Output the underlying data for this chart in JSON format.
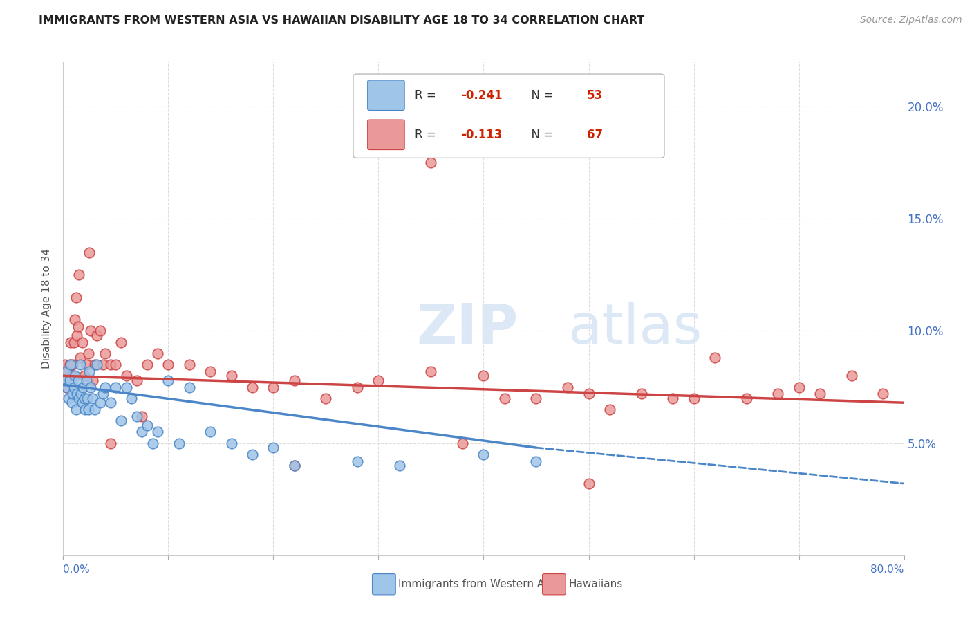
{
  "title": "IMMIGRANTS FROM WESTERN ASIA VS HAWAIIAN DISABILITY AGE 18 TO 34 CORRELATION CHART",
  "source": "Source: ZipAtlas.com",
  "ylabel": "Disability Age 18 to 34",
  "legend_label1": "Immigrants from Western Asia",
  "legend_label2": "Hawaiians",
  "R1": -0.241,
  "N1": 53,
  "R2": -0.113,
  "N2": 67,
  "color_blue": "#9fc5e8",
  "color_pink": "#ea9999",
  "color_blue_dark": "#4a86c8",
  "color_pink_dark": "#cc4444",
  "color_axis": "#4472c4",
  "watermark_color": "#dce8f5",
  "xlim": [
    0,
    80
  ],
  "ylim": [
    0,
    22
  ],
  "xticks": [
    0,
    10,
    20,
    30,
    40,
    50,
    60,
    70,
    80
  ],
  "yticks_right": [
    5.0,
    10.0,
    15.0,
    20.0
  ],
  "blue_trend_start_x": 0,
  "blue_trend_start_y": 7.6,
  "blue_trend_solid_end_x": 45,
  "blue_trend_solid_end_y": 4.8,
  "blue_trend_dash_end_x": 80,
  "blue_trend_dash_end_y": 3.2,
  "pink_trend_start_x": 0,
  "pink_trend_start_y": 8.0,
  "pink_trend_end_x": 80,
  "pink_trend_end_y": 6.8,
  "blue_scatter_x": [
    0.2,
    0.3,
    0.4,
    0.5,
    0.6,
    0.7,
    0.8,
    0.9,
    1.0,
    1.1,
    1.2,
    1.3,
    1.4,
    1.5,
    1.6,
    1.7,
    1.8,
    1.9,
    2.0,
    2.1,
    2.2,
    2.3,
    2.4,
    2.5,
    2.6,
    2.8,
    3.0,
    3.2,
    3.5,
    3.8,
    4.0,
    4.5,
    5.0,
    5.5,
    6.0,
    6.5,
    7.0,
    7.5,
    8.0,
    8.5,
    9.0,
    10.0,
    11.0,
    12.0,
    14.0,
    16.0,
    18.0,
    20.0,
    22.0,
    28.0,
    32.0,
    40.0,
    45.0
  ],
  "blue_scatter_y": [
    7.8,
    8.2,
    7.5,
    7.0,
    7.8,
    8.5,
    6.8,
    7.2,
    7.5,
    8.0,
    6.5,
    7.2,
    7.8,
    7.0,
    8.5,
    7.2,
    6.8,
    7.5,
    7.0,
    6.5,
    7.8,
    7.0,
    6.5,
    8.2,
    7.5,
    7.0,
    6.5,
    8.5,
    6.8,
    7.2,
    7.5,
    6.8,
    7.5,
    6.0,
    7.5,
    7.0,
    6.2,
    5.5,
    5.8,
    5.0,
    5.5,
    7.8,
    5.0,
    7.5,
    5.5,
    5.0,
    4.5,
    4.8,
    4.0,
    4.2,
    4.0,
    4.5,
    4.2
  ],
  "pink_scatter_x": [
    0.2,
    0.3,
    0.4,
    0.5,
    0.6,
    0.7,
    0.8,
    0.9,
    1.0,
    1.1,
    1.2,
    1.3,
    1.4,
    1.5,
    1.6,
    1.8,
    2.0,
    2.2,
    2.4,
    2.6,
    2.8,
    3.0,
    3.2,
    3.5,
    3.8,
    4.0,
    4.5,
    5.0,
    5.5,
    6.0,
    7.0,
    8.0,
    9.0,
    10.0,
    12.0,
    14.0,
    16.0,
    18.0,
    20.0,
    22.0,
    25.0,
    28.0,
    30.0,
    35.0,
    38.0,
    40.0,
    42.0,
    45.0,
    48.0,
    50.0,
    52.0,
    55.0,
    58.0,
    60.0,
    62.0,
    65.0,
    68.0,
    70.0,
    72.0,
    75.0,
    78.0,
    35.0,
    50.0,
    22.0,
    4.5,
    7.5,
    2.5
  ],
  "pink_scatter_y": [
    8.5,
    7.5,
    8.0,
    8.2,
    8.5,
    9.5,
    8.0,
    8.5,
    9.5,
    10.5,
    11.5,
    9.8,
    10.2,
    12.5,
    8.8,
    9.5,
    8.0,
    8.5,
    9.0,
    10.0,
    7.8,
    8.5,
    9.8,
    10.0,
    8.5,
    9.0,
    8.5,
    8.5,
    9.5,
    8.0,
    7.8,
    8.5,
    9.0,
    8.5,
    8.5,
    8.2,
    8.0,
    7.5,
    7.5,
    7.8,
    7.0,
    7.5,
    7.8,
    8.2,
    5.0,
    8.0,
    7.0,
    7.0,
    7.5,
    7.2,
    6.5,
    7.2,
    7.0,
    7.0,
    8.8,
    7.0,
    7.2,
    7.5,
    7.2,
    8.0,
    7.2,
    17.5,
    3.2,
    4.0,
    5.0,
    6.2,
    13.5
  ]
}
